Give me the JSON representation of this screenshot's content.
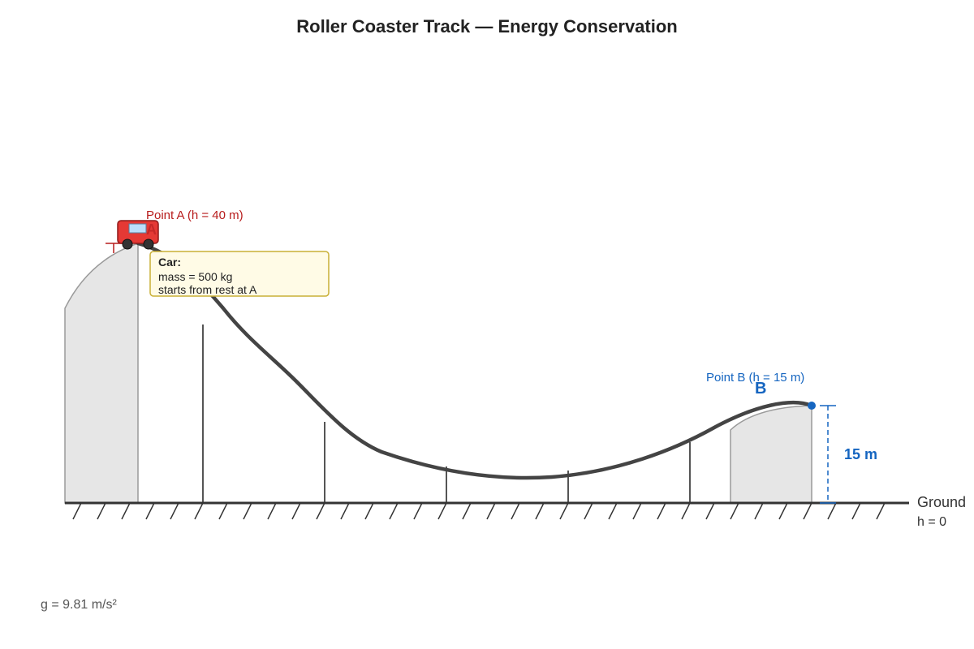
{
  "title": "Roller Coaster Track — Energy Conservation",
  "point_a": {
    "label": "Point A (h = 40 m)",
    "marker": "A",
    "color": "#b71c1c"
  },
  "point_b": {
    "label": "Point B (h = 15 m)",
    "marker": "B",
    "color": "#1565c0"
  },
  "car_info": {
    "heading": "Car:",
    "mass": "mass = 500 kg",
    "start": "starts from rest at A"
  },
  "height_b_dimension": "15 m",
  "ground": {
    "label": "Ground",
    "height": "h = 0"
  },
  "gravity": "g = 9.81 m/s²",
  "icons": {
    "car": "roller-coaster-car-icon"
  }
}
